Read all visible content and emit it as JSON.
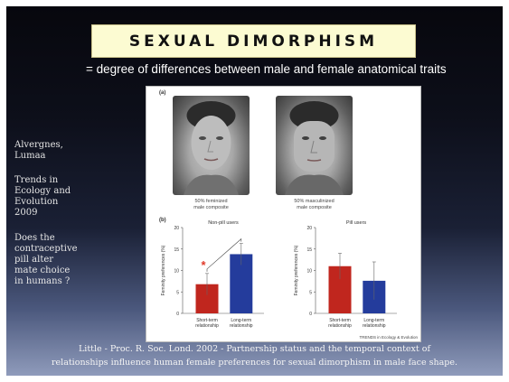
{
  "slide": {
    "title": "SEXUAL DIMORPHISM",
    "subtitle": "= degree of differences between male and female anatomical traits",
    "sidebar": {
      "authors": [
        "Alvergnes,",
        "Lumaa"
      ],
      "journal": [
        "Trends in",
        "Ecology and",
        "Evolution",
        "2009"
      ],
      "question": [
        "Does the",
        "contraceptive",
        "pill alter",
        "mate choice",
        "in humans ?"
      ]
    },
    "footer": [
      "Little - Proc. R. Soc. Lond. 2002 - Partnership status and the temporal context of",
      "relationships influence human female preferences for sexual dimorphism in male face shape."
    ]
  },
  "figure": {
    "panel_a": "(a)",
    "panel_b": "(b)",
    "faces": [
      {
        "caption": [
          "50% feminized",
          "male composite"
        ]
      },
      {
        "caption": [
          "50% masculinized",
          "male composite"
        ]
      }
    ],
    "source": "TRENDS in Ecology & Evolution",
    "significance_mark": "*"
  },
  "colors": {
    "red_bar": "#c0261e",
    "blue_bar": "#243c9c",
    "title_bg": "#fcfbd2"
  },
  "chart_data": [
    {
      "type": "bar",
      "title": "Non-pill users",
      "ylabel": "Feminity preferences (%)",
      "ylim": [
        0,
        20
      ],
      "yticks": [
        "0",
        "5",
        "10",
        "15",
        "20"
      ],
      "categories": [
        [
          "Short-term",
          "relationship"
        ],
        [
          "Long-term",
          "relationship"
        ]
      ],
      "values": [
        6.8,
        13.8
      ],
      "errors": [
        2.5,
        2.5
      ],
      "colors": [
        "#c0261e",
        "#243c9c"
      ]
    },
    {
      "type": "bar",
      "title": "Pill users",
      "ylabel": "Feminity preferences (%)",
      "ylim": [
        0,
        20
      ],
      "yticks": [
        "0",
        "5",
        "10",
        "15",
        "20"
      ],
      "categories": [
        [
          "Short-term",
          "relationship"
        ],
        [
          "Long-term",
          "relationship"
        ]
      ],
      "values": [
        11.0,
        7.6
      ],
      "errors": [
        3.0,
        4.4
      ],
      "colors": [
        "#c0261e",
        "#243c9c"
      ]
    }
  ]
}
